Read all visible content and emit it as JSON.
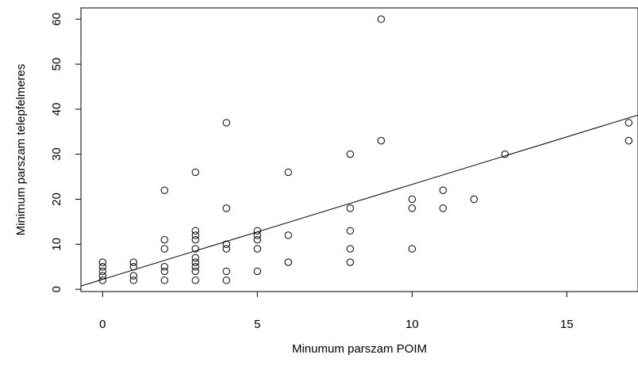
{
  "chart_data": {
    "type": "scatter",
    "title": "",
    "xlabel": "Minumum parszam POIM",
    "ylabel": "Minimum parszam telepfelmeres",
    "xlim": [
      -0.7,
      17.3
    ],
    "ylim": [
      -0.5,
      62.5
    ],
    "xticks": [
      0,
      5,
      10,
      15
    ],
    "xtick_labels": [
      "0",
      "5",
      "10",
      "15"
    ],
    "yticks": [
      0,
      10,
      20,
      30,
      40,
      50,
      60
    ],
    "ytick_labels": [
      "0",
      "10",
      "20",
      "30",
      "40",
      "50",
      "60"
    ],
    "grid": false,
    "legend": "none",
    "marker": "open-circle",
    "colors": {
      "points": "#000000",
      "line": "#000000",
      "axes": "#000000"
    },
    "points": [
      {
        "x": 0,
        "y": 2
      },
      {
        "x": 0,
        "y": 3
      },
      {
        "x": 0,
        "y": 4
      },
      {
        "x": 0,
        "y": 5
      },
      {
        "x": 0,
        "y": 6
      },
      {
        "x": 1,
        "y": 2
      },
      {
        "x": 1,
        "y": 3
      },
      {
        "x": 1,
        "y": 5
      },
      {
        "x": 1,
        "y": 6
      },
      {
        "x": 2,
        "y": 2
      },
      {
        "x": 2,
        "y": 4
      },
      {
        "x": 2,
        "y": 5
      },
      {
        "x": 2,
        "y": 9
      },
      {
        "x": 2,
        "y": 11
      },
      {
        "x": 2,
        "y": 22
      },
      {
        "x": 3,
        "y": 2
      },
      {
        "x": 3,
        "y": 4
      },
      {
        "x": 3,
        "y": 5
      },
      {
        "x": 3,
        "y": 6
      },
      {
        "x": 3,
        "y": 7
      },
      {
        "x": 3,
        "y": 9
      },
      {
        "x": 3,
        "y": 11
      },
      {
        "x": 3,
        "y": 12
      },
      {
        "x": 3,
        "y": 13
      },
      {
        "x": 3,
        "y": 26
      },
      {
        "x": 4,
        "y": 2
      },
      {
        "x": 4,
        "y": 4
      },
      {
        "x": 4,
        "y": 9
      },
      {
        "x": 4,
        "y": 10
      },
      {
        "x": 4,
        "y": 18
      },
      {
        "x": 4,
        "y": 37
      },
      {
        "x": 5,
        "y": 4
      },
      {
        "x": 5,
        "y": 9
      },
      {
        "x": 5,
        "y": 11
      },
      {
        "x": 5,
        "y": 12
      },
      {
        "x": 5,
        "y": 13
      },
      {
        "x": 6,
        "y": 6
      },
      {
        "x": 6,
        "y": 12
      },
      {
        "x": 6,
        "y": 26
      },
      {
        "x": 8,
        "y": 6
      },
      {
        "x": 8,
        "y": 9
      },
      {
        "x": 8,
        "y": 13
      },
      {
        "x": 8,
        "y": 18
      },
      {
        "x": 8,
        "y": 30
      },
      {
        "x": 9,
        "y": 33
      },
      {
        "x": 9,
        "y": 60
      },
      {
        "x": 10,
        "y": 9
      },
      {
        "x": 10,
        "y": 18
      },
      {
        "x": 10,
        "y": 20
      },
      {
        "x": 11,
        "y": 18
      },
      {
        "x": 11,
        "y": 22
      },
      {
        "x": 12,
        "y": 20
      },
      {
        "x": 13,
        "y": 30
      },
      {
        "x": 17,
        "y": 33
      },
      {
        "x": 17,
        "y": 37
      }
    ],
    "regression_line": {
      "intercept": 2.2,
      "slope": 2.11
    }
  }
}
